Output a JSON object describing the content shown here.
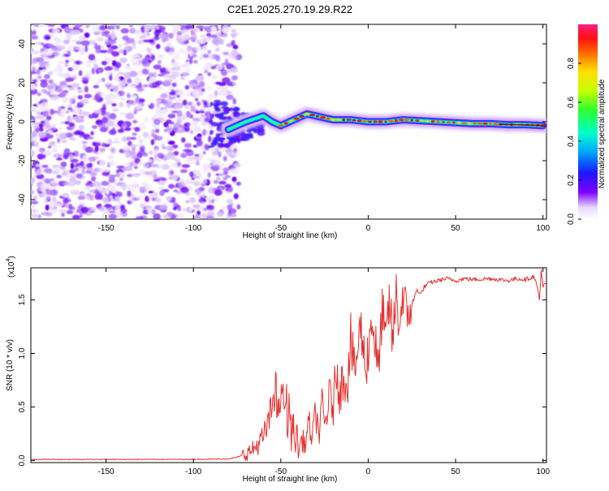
{
  "title": "C2E1.2025.270.19.29.R22",
  "chart_data": [
    {
      "type": "heatmap",
      "title": "C2E1.2025.270.19.29.R22",
      "xlabel": "Height of straight line (km)",
      "ylabel": "Frequency (Hz)",
      "xlim": [
        -193,
        102
      ],
      "ylim": [
        -50,
        50
      ],
      "xticks": [
        -150,
        -100,
        -50,
        0,
        50,
        100
      ],
      "yticks": [
        -40,
        -20,
        0,
        20,
        40
      ],
      "noise_region_x": [
        -193,
        -75
      ],
      "ridge_x": [
        -80,
        -70,
        -60,
        -55,
        -50,
        -45,
        -40,
        -35,
        -30,
        -25,
        -20,
        -10,
        0,
        10,
        20,
        30,
        40,
        50,
        60,
        70,
        80,
        90,
        100
      ],
      "ridge_freq": [
        -4,
        0,
        3,
        0,
        -2,
        0,
        2,
        4,
        3,
        2,
        1,
        1,
        0,
        0,
        1,
        0.5,
        0,
        -0.5,
        -1,
        -1,
        -1.5,
        -1.5,
        -2
      ],
      "colorbar": {
        "label": "Normalized spectral amplitude",
        "ticks": [
          "0.0",
          "0.2",
          "0.4",
          "0.6",
          "0.8"
        ],
        "range": [
          0,
          1
        ]
      }
    },
    {
      "type": "line",
      "xlabel": "Height of straight line (km)",
      "ylabel": "SNR (10 * v/v)",
      "scale_label": "(x10",
      "scale_exp": "4",
      "xlim": [
        -193,
        102
      ],
      "ylim": [
        -0.02,
        1.8
      ],
      "xticks": [
        -150,
        -100,
        -50,
        0,
        50,
        100
      ],
      "yticks": [
        "0.0",
        "0.5",
        "1.0",
        "1.5"
      ],
      "color": "#e53030",
      "series": [
        {
          "name": "SNR",
          "x": [
            -193,
            -150,
            -100,
            -80,
            -75,
            -70,
            -66,
            -63,
            -60,
            -57,
            -55,
            -53,
            -52,
            -51,
            -50,
            -49,
            -48,
            -47,
            -46,
            -45,
            -44,
            -43,
            -42,
            -41,
            -40,
            -38,
            -36,
            -34,
            -32,
            -30,
            -28,
            -26,
            -25,
            -24,
            -22,
            -20,
            -18,
            -16,
            -14,
            -12,
            -10,
            -8,
            -6,
            -4,
            -2,
            0,
            2,
            4,
            6,
            8,
            10,
            12,
            14,
            16,
            18,
            20,
            22,
            24,
            26,
            28,
            30,
            32,
            35,
            40,
            45,
            50,
            55,
            60,
            70,
            80,
            85,
            90,
            95,
            97,
            98,
            99,
            100,
            102
          ],
          "y": [
            0.01,
            0.01,
            0.01,
            0.015,
            0.03,
            0.06,
            0.1,
            0.15,
            0.22,
            0.35,
            0.5,
            0.8,
            0.3,
            0.65,
            0.4,
            0.82,
            0.35,
            0.7,
            0.25,
            0.6,
            0.15,
            0.4,
            0.12,
            0.3,
            0.08,
            0.2,
            0.15,
            0.35,
            0.2,
            0.45,
            0.25,
            0.55,
            0.3,
            0.42,
            0.6,
            0.5,
            0.9,
            0.6,
            0.85,
            0.7,
            1.15,
            0.8,
            1.05,
            1.25,
            0.9,
            1.0,
            1.35,
            1.1,
            0.8,
            1.45,
            1.05,
            1.5,
            1.1,
            1.55,
            1.25,
            1.6,
            1.3,
            1.45,
            1.5,
            1.6,
            1.55,
            1.62,
            1.66,
            1.68,
            1.7,
            1.68,
            1.7,
            1.69,
            1.7,
            1.68,
            1.7,
            1.69,
            1.72,
            1.6,
            1.5,
            1.78,
            1.62,
            1.66
          ]
        }
      ]
    }
  ]
}
